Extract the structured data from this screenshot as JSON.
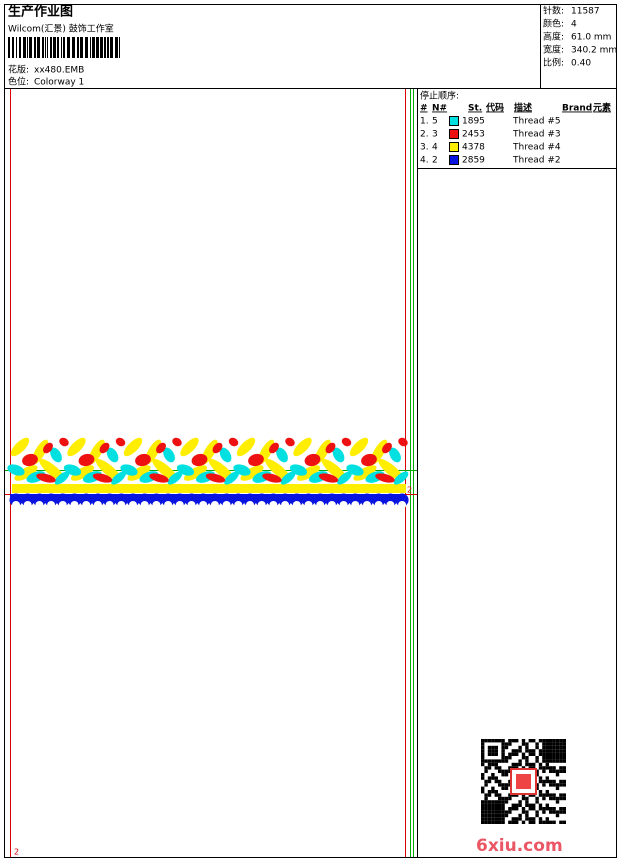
{
  "header": {
    "title": "生产作业图",
    "subtitle": "Wilcom(汇景) 鼓饰工作室",
    "design_label": "花版:",
    "design": "xx480.EMB",
    "colorway_label": "色位:",
    "colorway": "Colorway 1"
  },
  "info": [
    {
      "label": "针数:",
      "value": "11587"
    },
    {
      "label": "颜色:",
      "value": "4"
    },
    {
      "label": "高度:",
      "value": "61.0 mm"
    },
    {
      "label": "宽度:",
      "value": "340.2 mm"
    },
    {
      "label": "比例:",
      "value": "0.40"
    }
  ],
  "stop_sequence": {
    "title": "停止顺序:",
    "columns": [
      "#",
      "N#",
      "St.",
      "代码",
      "描述",
      "Brand",
      "元素"
    ],
    "rows": [
      {
        "order": "1.",
        "needle": "5",
        "color": "#00e0e0",
        "code": "1895",
        "description": "Thread #5"
      },
      {
        "order": "2.",
        "needle": "3",
        "color": "#ee1111",
        "code": "2453",
        "description": "Thread #3"
      },
      {
        "order": "3.",
        "needle": "4",
        "color": "#ffee00",
        "code": "4378",
        "description": "Thread #4"
      },
      {
        "order": "4.",
        "needle": "2",
        "color": "#0a14e0",
        "code": "2859",
        "description": "Thread #2"
      }
    ]
  },
  "markers": [
    "2",
    "2"
  ],
  "watermark": "6xiu.com"
}
